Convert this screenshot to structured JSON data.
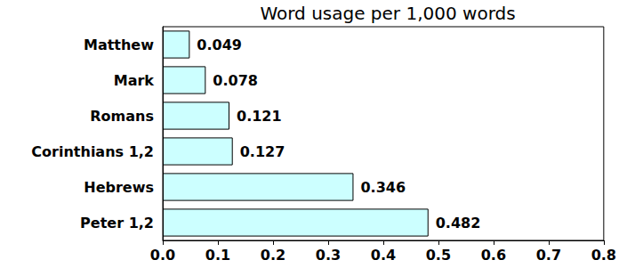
{
  "chart_data": {
    "type": "bar",
    "title": "Word usage per 1,000 words",
    "orientation": "horizontal",
    "categories": [
      "Matthew",
      "Mark",
      "Romans",
      "Corinthians 1,2",
      "Hebrews",
      "Peter 1,2"
    ],
    "values": [
      0.049,
      0.078,
      0.121,
      0.127,
      0.346,
      0.482
    ],
    "color": "#ccffff",
    "xlim": [
      0,
      0.8
    ],
    "xticks": [
      {
        "value": 0,
        "label": "0.0"
      },
      0.1,
      0.2,
      0.3,
      0.4,
      0.5,
      0.6,
      0.7,
      0.8
    ],
    "grid": false,
    "data_labels": true
  }
}
